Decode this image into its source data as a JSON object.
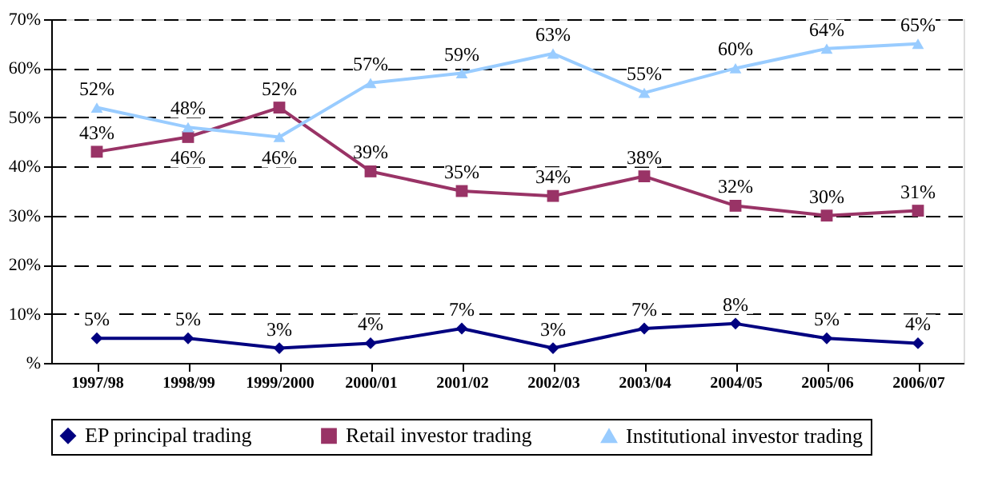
{
  "chart_data": {
    "type": "line",
    "categories": [
      "1997/98",
      "1998/99",
      "1999/2000",
      "2000/01",
      "2001/02",
      "2002/03",
      "2003/04",
      "2004/05",
      "2005/06",
      "2006/07"
    ],
    "series": [
      {
        "name": "EP principal trading",
        "color": "#000080",
        "marker": "diamond",
        "values": [
          5,
          5,
          3,
          4,
          7,
          3,
          7,
          8,
          5,
          4
        ],
        "value_labels": [
          "5%",
          "5%",
          "3%",
          "4%",
          "7%",
          "3%",
          "7%",
          "8%",
          "5%",
          "4%"
        ]
      },
      {
        "name": "Retail investor trading",
        "color": "#993366",
        "marker": "square",
        "values": [
          43,
          46,
          52,
          39,
          35,
          34,
          38,
          32,
          30,
          31
        ],
        "value_labels": [
          "43%",
          "46%",
          "52%",
          "39%",
          "35%",
          "34%",
          "38%",
          "32%",
          "30%",
          "31%"
        ]
      },
      {
        "name": "Institutional investor trading",
        "color": "#99ccff",
        "marker": "triangle",
        "values": [
          52,
          48,
          46,
          57,
          59,
          63,
          55,
          60,
          64,
          65
        ],
        "value_labels": [
          "52%",
          "48%",
          "46%",
          "57%",
          "59%",
          "63%",
          "55%",
          "60%",
          "64%",
          "65%"
        ]
      }
    ],
    "ylim": [
      0,
      70
    ],
    "yticks": [
      {
        "value": 0,
        "label": "%"
      },
      {
        "value": 10,
        "label": "10%"
      },
      {
        "value": 20,
        "label": "20%"
      },
      {
        "value": 30,
        "label": "30%"
      },
      {
        "value": 40,
        "label": "40%"
      },
      {
        "value": 50,
        "label": "50%"
      },
      {
        "value": 60,
        "label": "60%"
      },
      {
        "value": 70,
        "label": "70%"
      }
    ],
    "grid": "y",
    "legend": "bottom",
    "line_style": "solid"
  }
}
